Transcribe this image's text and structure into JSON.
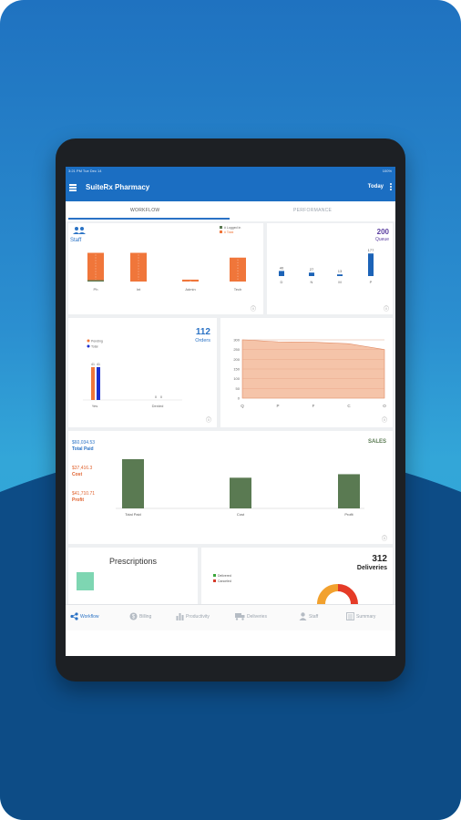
{
  "status_bar": {
    "time": "3:21 PM   Tue Dec 14",
    "right": "100%"
  },
  "app_bar": {
    "title": "SuiteRx Pharmacy",
    "action": "Today"
  },
  "tabs": [
    {
      "label": "WORKFLOW",
      "active": true
    },
    {
      "label": "PERFORMANCE",
      "active": false
    }
  ],
  "staff_card": {
    "title": "Staff",
    "legend": [
      "# Logged in",
      "# Total"
    ],
    "chart_data": {
      "type": "bar",
      "categories": [
        "Ph",
        "Int",
        "Admin",
        "Tech"
      ],
      "series": [
        {
          "name": "# Logged in",
          "values": [
            0.2,
            0,
            0,
            0
          ]
        },
        {
          "name": "# Total",
          "values": [
            6,
            6,
            0.4,
            5
          ]
        }
      ],
      "ylim": [
        0,
        8
      ]
    }
  },
  "queue_card": {
    "value": "200",
    "label": "Queue",
    "chart_data": {
      "type": "bar",
      "categories": [
        "D",
        "N",
        "M",
        "P"
      ],
      "values": [
        40,
        27,
        13,
        177
      ],
      "data_labels": [
        "40",
        "27",
        "13",
        "177"
      ],
      "ylim": [
        0,
        200
      ]
    }
  },
  "orders_card": {
    "value": "112",
    "label": "Orders",
    "legend": [
      "Pending",
      "Total"
    ],
    "chart_data": {
      "type": "bar",
      "categories": [
        "Yes",
        "Denied"
      ],
      "series": [
        {
          "name": "Pending",
          "values": [
            41,
            0
          ]
        },
        {
          "name": "Total",
          "values": [
            41,
            0
          ]
        }
      ],
      "data_labels": [
        "41",
        "41",
        "0",
        "0"
      ],
      "ylim": [
        0,
        50
      ]
    }
  },
  "area_card": {
    "chart_data": {
      "type": "area",
      "categories": [
        "Q",
        "P",
        "F",
        "C",
        "O"
      ],
      "values": [
        300,
        290,
        288,
        280,
        250
      ],
      "yticks": [
        "300",
        "250",
        "200",
        "150",
        "100",
        "50",
        "0"
      ],
      "ylim": [
        0,
        300
      ]
    }
  },
  "sales_card": {
    "title": "SALES",
    "total_paid_value": "$60,034.53",
    "total_paid_label": "Total Paid",
    "cost_value": "$37,416.3",
    "cost_label": "Cost",
    "profit_value": "$41,710.71",
    "profit_label": "Profit",
    "chart_data": {
      "type": "bar",
      "categories": [
        "Total Paid",
        "Cost",
        "Profit"
      ],
      "values": [
        60034.53,
        37416.3,
        41710.71
      ],
      "ylim": [
        0,
        65000
      ]
    }
  },
  "prescriptions_card": {
    "title": "Prescriptions"
  },
  "deliveries_card": {
    "value": "312",
    "label": "Deliveries",
    "legend": [
      "Delivered",
      "Canceled"
    ]
  },
  "bottom_nav": [
    {
      "label": "Workflow",
      "icon": "workflow-icon",
      "active": true
    },
    {
      "label": "Billing",
      "icon": "dollar-icon",
      "active": false
    },
    {
      "label": "Productivity",
      "icon": "bar-chart-icon",
      "active": false
    },
    {
      "label": "Deliveries",
      "icon": "truck-icon",
      "active": false
    },
    {
      "label": "Staff",
      "icon": "person-icon",
      "active": false
    },
    {
      "label": "Summary",
      "icon": "list-icon",
      "active": false
    }
  ],
  "colors": {
    "primary": "#1b6ec2",
    "orange": "#f0763a",
    "green_bar": "#5a7a52",
    "queue_bar": "#1c63b7",
    "purple": "#5b3fa0",
    "teal_box": "#7ed6b2"
  }
}
